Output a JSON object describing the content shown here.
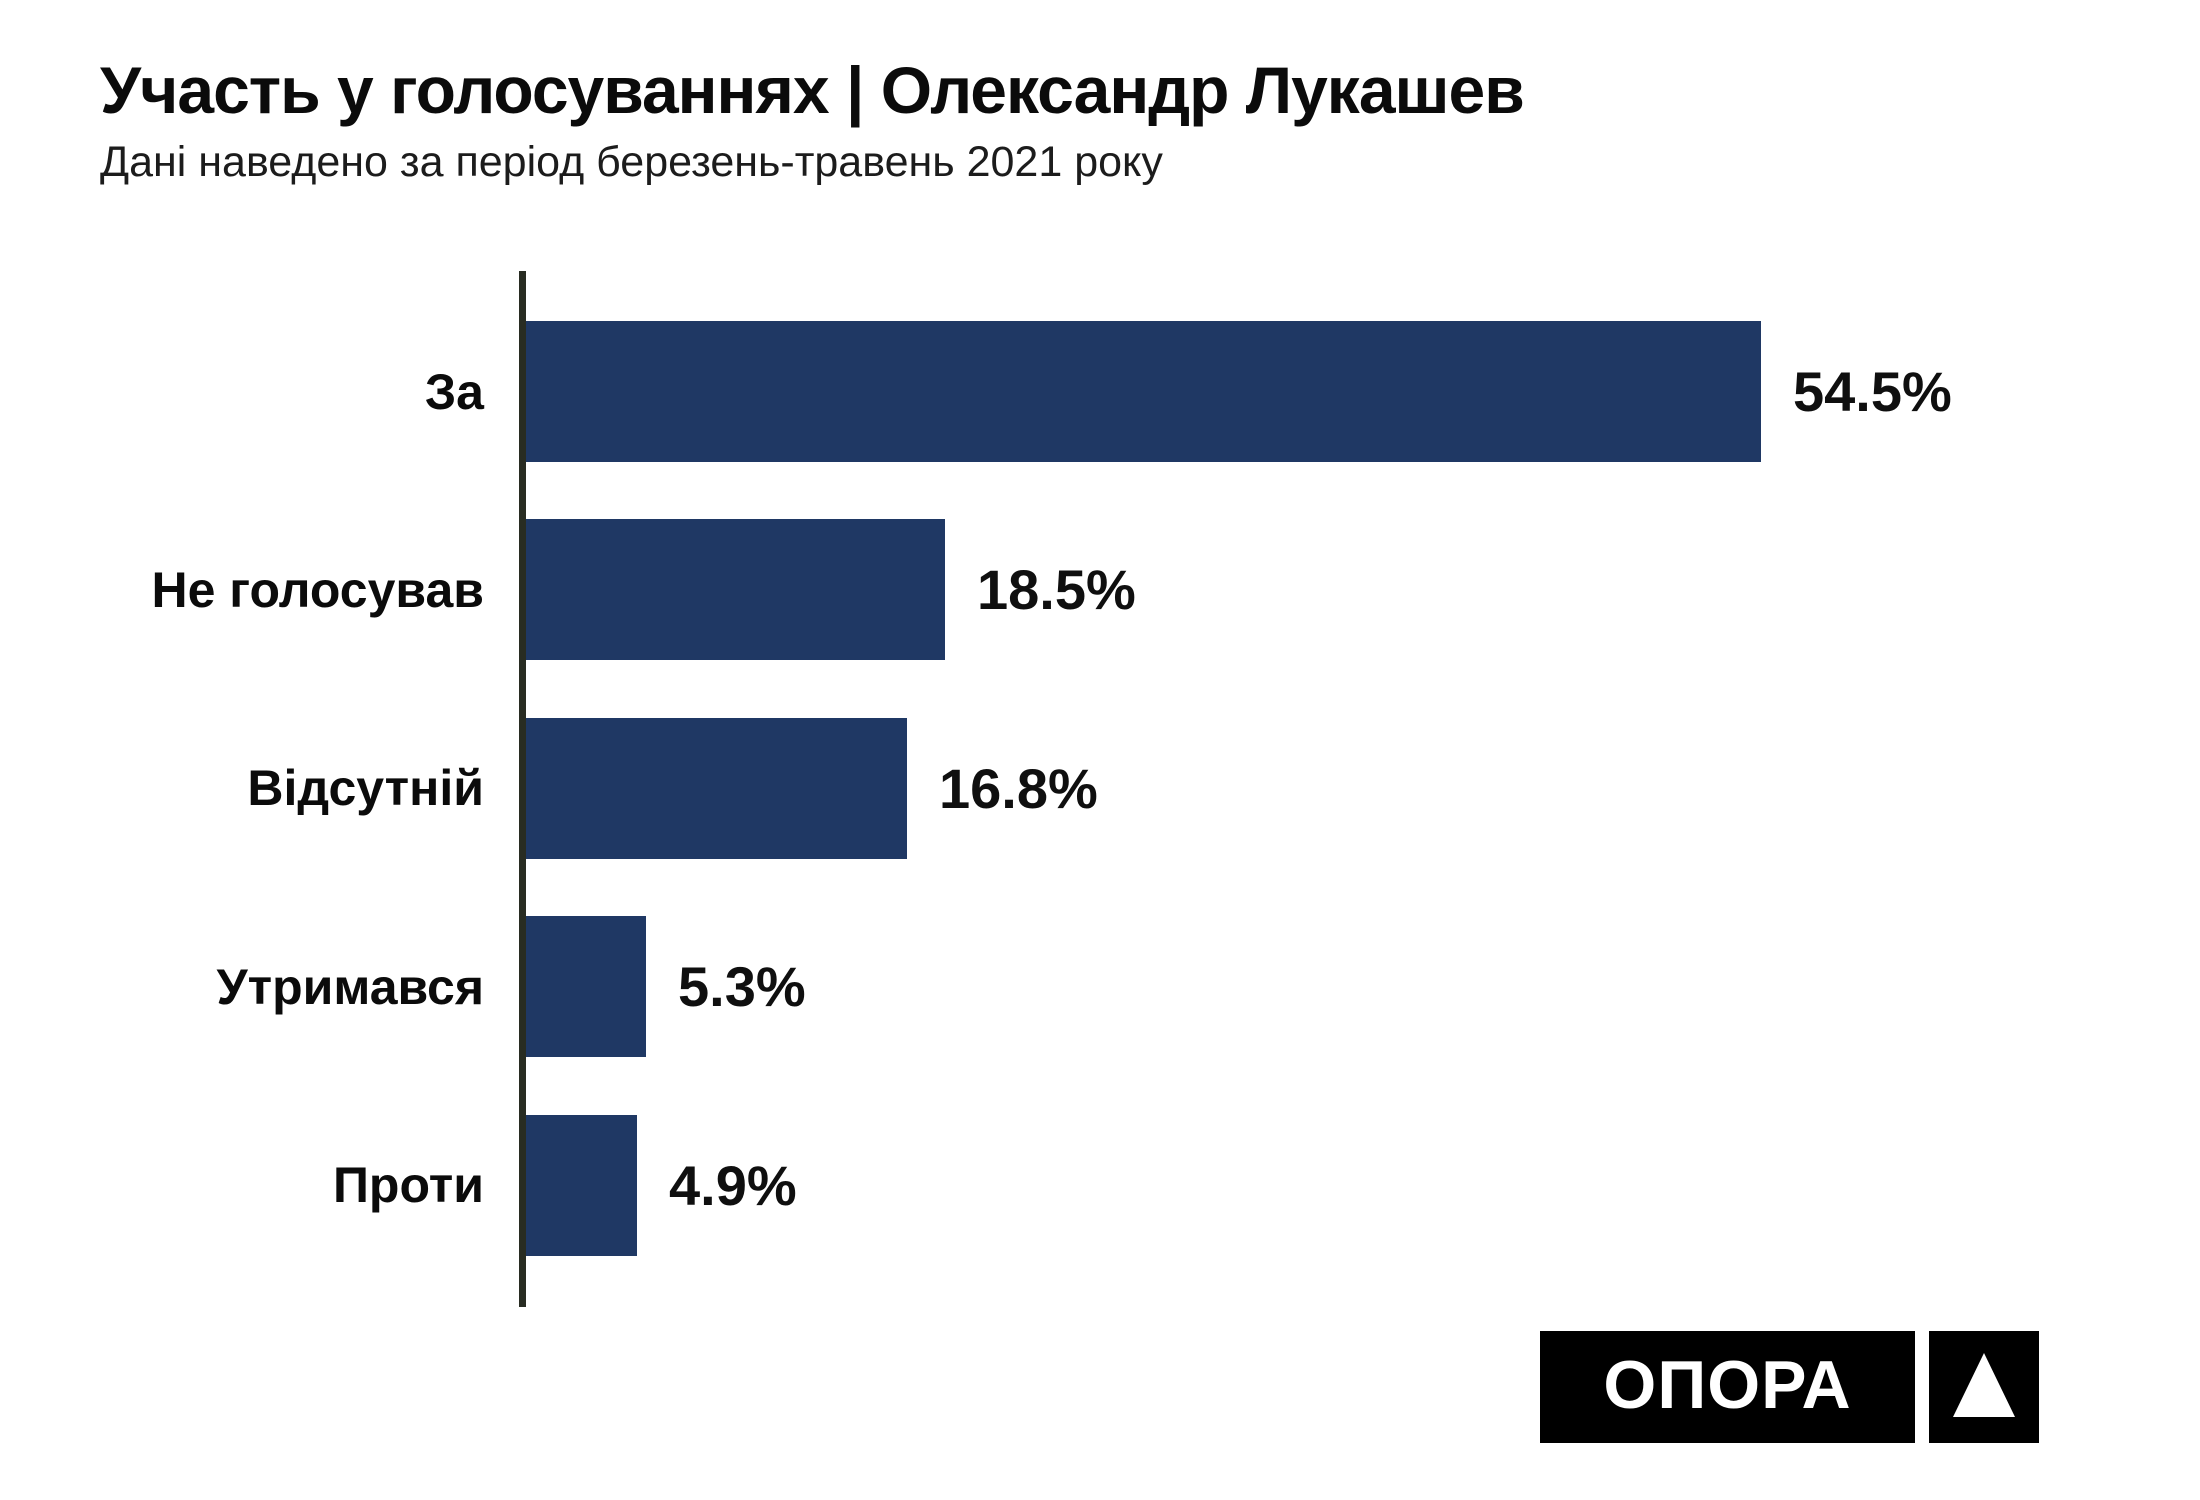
{
  "page": {
    "background": "#ffffff"
  },
  "header": {
    "title": "Участь у голосуваннях | Олександр Лукашев",
    "subtitle": "Дані наведено за період березень-травень 2021 року"
  },
  "chart_data": {
    "type": "bar",
    "orientation": "horizontal",
    "title": "Участь у голосуваннях | Олександр Лукашев",
    "subtitle": "Дані наведено за період березень-травень 2021 року",
    "categories": [
      "За",
      "Не голосував",
      "Відсутній",
      "Утримався",
      "Проти"
    ],
    "values": [
      54.5,
      18.5,
      16.8,
      5.3,
      4.9
    ],
    "value_labels": [
      "54.5%",
      "18.5%",
      "16.8%",
      "5.3%",
      "4.9%"
    ],
    "unit": "%",
    "xlim": [
      0,
      74
    ],
    "grid": false,
    "legend": false,
    "bar_color": "#1f3864",
    "axis_color": "#282c22",
    "label_position": "outside-end"
  },
  "logo": {
    "text": "ОПОРА",
    "symbol": "triangle-icon",
    "bg_color": "#000000",
    "fg_color": "#ffffff"
  }
}
